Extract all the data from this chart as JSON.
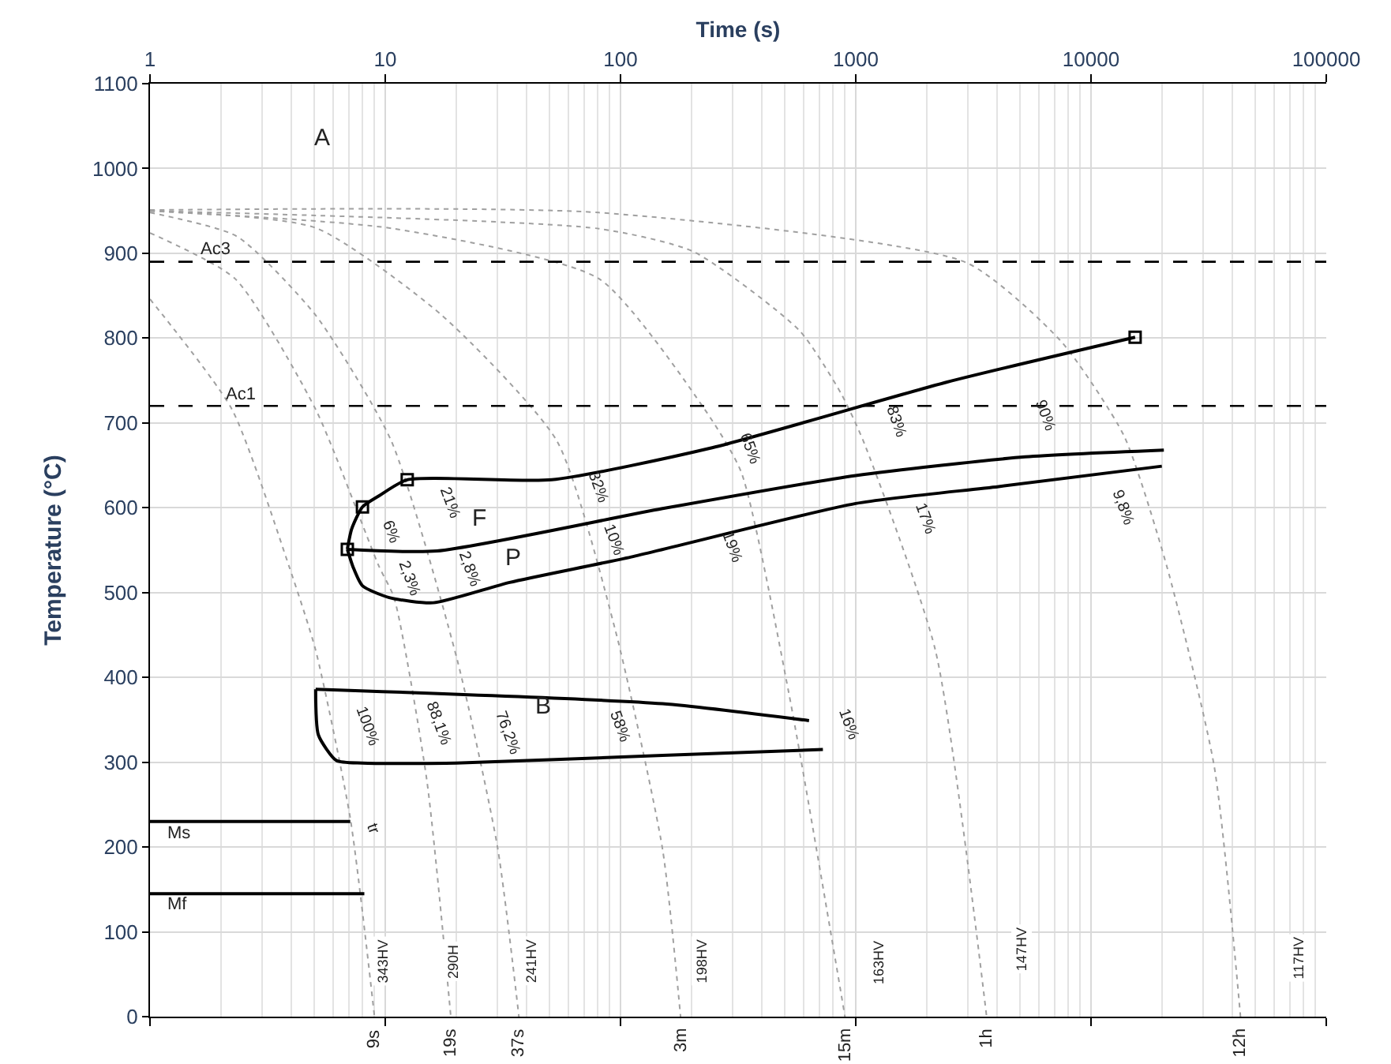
{
  "chart_data": {
    "type": "line",
    "xlabel": "Time (s)",
    "ylabel": "Temperature (°C)",
    "log": "x",
    "xlim": [
      1,
      100000
    ],
    "ylim": [
      0,
      1100
    ],
    "xticks": [
      1,
      10,
      100,
      1000,
      10000,
      100000
    ],
    "yticks": [
      0,
      100,
      200,
      300,
      400,
      500,
      600,
      700,
      800,
      900,
      1000,
      1100
    ],
    "grid": true,
    "ref_lines": [
      {
        "axis": "y",
        "value": 890,
        "line_style": "dashed",
        "color": "#000000"
      },
      {
        "axis": "y",
        "value": 720,
        "line_style": "dashed",
        "color": "#000000"
      }
    ],
    "series": [
      {
        "color": "#a0a0a0",
        "line_style": "dotted",
        "x": [
          1,
          2.23,
          3.9,
          5.06,
          7.1,
          9
        ],
        "values": [
          846,
          716,
          531,
          432,
          234,
          0
        ]
      },
      {
        "color": "#a0a0a0",
        "line_style": "dotted",
        "x": [
          1,
          2.3,
          5.06,
          9.4,
          10.9,
          15,
          19
        ],
        "values": [
          924,
          870,
          716,
          531,
          494,
          280,
          0
        ]
      },
      {
        "color": "#a0a0a0",
        "line_style": "dotted",
        "x": [
          1,
          2.34,
          5.06,
          10.6,
          20.3,
          30,
          37
        ],
        "values": [
          948,
          920,
          827,
          679,
          419,
          200,
          0
        ]
      },
      {
        "color": "#a0a0a0",
        "line_style": "dotted",
        "x": [
          1,
          5.06,
          17.4,
          53.6,
          95,
          151,
          180
        ],
        "values": [
          950,
          930,
          827,
          679,
          456,
          197,
          0
        ]
      },
      {
        "color": "#a0a0a0",
        "line_style": "dotted",
        "x": [
          1,
          10.9,
          81,
          228,
          326,
          519,
          900
        ],
        "values": [
          950,
          929,
          870,
          716,
          642,
          382,
          0
        ]
      },
      {
        "color": "#a0a0a0",
        "line_style": "dotted",
        "x": [
          1,
          81,
          204,
          576,
          865,
          1076,
          2180,
          3600
        ],
        "values": [
          950,
          929,
          902,
          809,
          735,
          679,
          432,
          0
        ]
      },
      {
        "color": "#a0a0a0",
        "line_style": "dotted",
        "x": [
          1,
          81,
          2950,
          7470,
          13800,
          21000,
          33400,
          43200
        ],
        "values": [
          951,
          948,
          889,
          796,
          685,
          531,
          295,
          0
        ]
      },
      {
        "color": "#000000",
        "line_style": "solid",
        "x": [
          1,
          7.1
        ],
        "values": [
          230,
          230
        ]
      },
      {
        "color": "#000000",
        "line_style": "solid",
        "x": [
          1,
          8.15
        ],
        "values": [
          145,
          145
        ]
      },
      {
        "color": "#000000",
        "line_style": "solid",
        "x": [
          15400,
          2430,
          239,
          51,
          12.4,
          9.4,
          8.0,
          7.2,
          6.9
        ],
        "values": [
          801,
          748,
          670,
          633,
          633,
          614,
          601,
          575,
          551
        ]
      },
      {
        "color": "#000000",
        "line_style": "solid",
        "x": [
          6.9,
          16.6,
          151,
          1000,
          5250,
          20400
        ],
        "values": [
          551,
          549,
          599,
          638,
          660,
          668
        ]
      },
      {
        "color": "#000000",
        "line_style": "solid",
        "x": [
          6.9,
          7.3,
          8.0,
          10.4,
          16,
          33.8,
          111,
          1000,
          4050,
          20000
        ],
        "values": [
          551,
          530,
          508,
          494,
          488,
          512,
          542,
          605,
          625,
          649
        ]
      },
      {
        "color": "#000000",
        "line_style": "solid",
        "x": [
          5.06,
          151,
          633
        ],
        "values": [
          386,
          369,
          349
        ]
      },
      {
        "color": "#000000",
        "line_style": "solid",
        "x": [
          5.06,
          5.2,
          6.2,
          8.0,
          20,
          151,
          725
        ],
        "values": [
          386,
          332,
          302,
          299,
          299,
          308,
          315
        ]
      },
      {
        "type": "scatter",
        "marker": "square",
        "color": "#000000",
        "x": [
          15400,
          12.4,
          8.0,
          6.9
        ],
        "values": [
          801,
          633,
          601,
          551
        ]
      }
    ],
    "annotations": [
      "A",
      "F",
      "P",
      "B",
      "Ac3",
      "Ac1",
      "Ms",
      "Mf",
      "6%",
      "21%",
      "2,3%",
      "2,8%",
      "32%",
      "10%",
      "65%",
      "19%",
      "83%",
      "17%",
      "90%",
      "9,8%",
      "100%",
      "88,1%",
      "76,2%",
      "58%",
      "16%",
      "tr",
      {
        "text": "343HV",
        "x": 9.8,
        "y": 65
      },
      {
        "text": "290H",
        "x": 19.4,
        "y": 65
      },
      {
        "text": "241HV",
        "x": 41.8,
        "y": 65
      },
      {
        "text": "198HV",
        "x": 222,
        "y": 65
      },
      {
        "text": "163HV",
        "x": 1250,
        "y": 65
      },
      {
        "text": "147HV",
        "x": 5070,
        "y": 80
      },
      {
        "text": "117HV",
        "x": 76800,
        "y": 70
      },
      {
        "text": "9s",
        "x": 9,
        "y": 0
      },
      {
        "text": "19s",
        "x": 19,
        "y": 0
      },
      {
        "text": "37s",
        "x": 37,
        "y": 0
      },
      {
        "text": "3m",
        "x": 180,
        "y": 0
      },
      {
        "text": "15m",
        "x": 900,
        "y": 0
      },
      {
        "text": "1h",
        "x": 3600,
        "y": 0
      },
      {
        "text": "12h",
        "x": 43200,
        "y": 0
      }
    ]
  }
}
